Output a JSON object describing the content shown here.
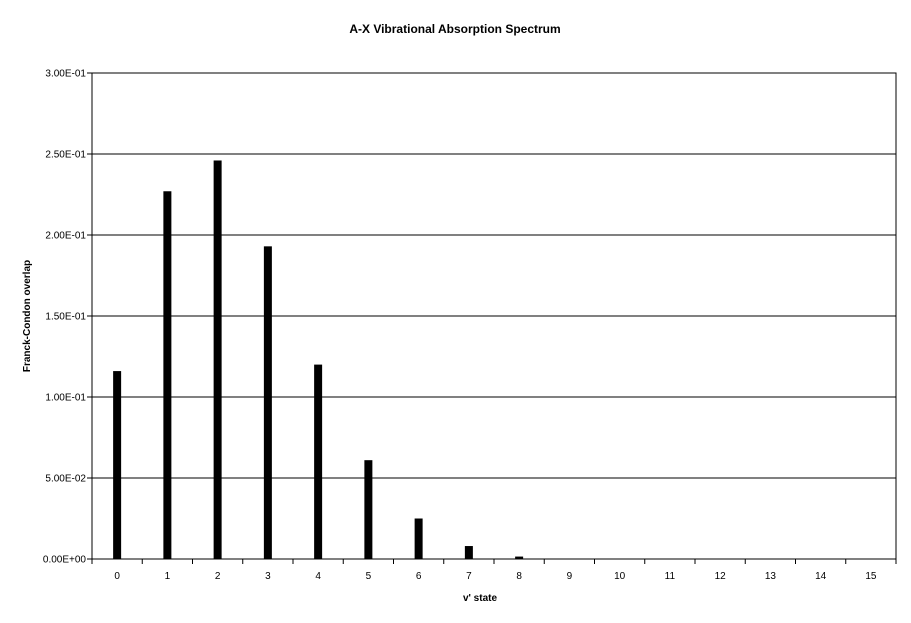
{
  "chart_data": {
    "type": "bar",
    "title": "A-X Vibrational Absorption Spectrum",
    "xlabel": "v' state",
    "ylabel": "Franck-Condon overlap",
    "categories": [
      "0",
      "1",
      "2",
      "3",
      "4",
      "5",
      "6",
      "7",
      "8",
      "9",
      "10",
      "11",
      "12",
      "13",
      "14",
      "15"
    ],
    "values": [
      0.116,
      0.227,
      0.246,
      0.193,
      0.12,
      0.061,
      0.025,
      0.008,
      0.0015,
      0,
      0,
      0,
      0,
      0,
      0,
      0
    ],
    "ylim": [
      0,
      0.3
    ],
    "yticks": [
      0,
      0.05,
      0.1,
      0.15,
      0.2,
      0.25,
      0.3
    ],
    "ytick_labels": [
      "0.00E+00",
      "5.00E-02",
      "1.00E-01",
      "1.50E-01",
      "2.00E-01",
      "2.50E-01",
      "3.00E-01"
    ],
    "grid": true,
    "bar_color": "#000000",
    "legend": false
  }
}
